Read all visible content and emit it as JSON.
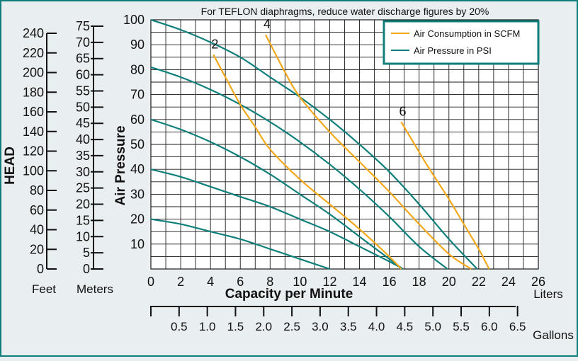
{
  "chart_data": {
    "type": "line",
    "title": "For TEFLON diaphragms, reduce water discharge figures by 20%",
    "xlabel": "Capacity per Minute",
    "x_unit_primary": "Liters",
    "x_unit_secondary": "Gallons",
    "ylabel": "Air Pressure",
    "y_outer_label": "HEAD",
    "xlim": [
      0,
      26
    ],
    "ylim": [
      0,
      100
    ],
    "x_ticks": [
      "0",
      "2",
      "4",
      "6",
      "8",
      "10",
      "12",
      "14",
      "16",
      "18",
      "20",
      "22",
      "24",
      "26"
    ],
    "y_ticks": [
      "10",
      "20",
      "30",
      "40",
      "50",
      "60",
      "70",
      "80",
      "90",
      "100"
    ],
    "gallon_ticks": [
      "0.5",
      "1.0",
      "1.5",
      "2.0",
      "2.5",
      "3.0",
      "3.5",
      "4.0",
      "4.5",
      "5.0",
      "5.5",
      "6.0",
      "6.5"
    ],
    "feet_axis": {
      "label": "Feet",
      "ticks": [
        "0",
        "20",
        "40",
        "60",
        "80",
        "100",
        "120",
        "140",
        "160",
        "180",
        "200",
        "220",
        "240"
      ]
    },
    "meters_axis": {
      "label": "Meters",
      "ticks": [
        "0",
        "5",
        "10",
        "15",
        "20",
        "25",
        "30",
        "35",
        "40",
        "45",
        "50",
        "55",
        "60",
        "65",
        "70",
        "75"
      ]
    },
    "legend": {
      "position": "top-right",
      "entries": [
        {
          "label": "Air Consumption in SCFM",
          "color": "#f3a81c"
        },
        {
          "label": "Air Pressure in PSI",
          "color": "#0f7f7b"
        }
      ]
    },
    "series": [
      {
        "name": "Air Pressure 100 PSI",
        "kind": "pressure",
        "color": "#0f7f7b",
        "points": [
          [
            0,
            100
          ],
          [
            2,
            96
          ],
          [
            4,
            91
          ],
          [
            6,
            85
          ],
          [
            8,
            77
          ],
          [
            10,
            69
          ],
          [
            12,
            60
          ],
          [
            14,
            50
          ],
          [
            16,
            39
          ],
          [
            18,
            26
          ],
          [
            20,
            12
          ],
          [
            21.9,
            0
          ]
        ]
      },
      {
        "name": "Air Pressure 80 PSI",
        "kind": "pressure",
        "color": "#0f7f7b",
        "points": [
          [
            0,
            81
          ],
          [
            2,
            77
          ],
          [
            4,
            72
          ],
          [
            6,
            66
          ],
          [
            8,
            59
          ],
          [
            10,
            51
          ],
          [
            12,
            42
          ],
          [
            14,
            32
          ],
          [
            16,
            21
          ],
          [
            18,
            9
          ],
          [
            19.9,
            0
          ]
        ]
      },
      {
        "name": "Air Pressure 60 PSI",
        "kind": "pressure",
        "color": "#0f7f7b",
        "points": [
          [
            0,
            60
          ],
          [
            2,
            56
          ],
          [
            4,
            51
          ],
          [
            6,
            45
          ],
          [
            8,
            38
          ],
          [
            10,
            30
          ],
          [
            12,
            22
          ],
          [
            14,
            13
          ],
          [
            16,
            4
          ],
          [
            16.9,
            0
          ]
        ]
      },
      {
        "name": "Air Pressure 40 PSI",
        "kind": "pressure",
        "color": "#0f7f7b",
        "points": [
          [
            0,
            40
          ],
          [
            2,
            37
          ],
          [
            4,
            33
          ],
          [
            6,
            29
          ],
          [
            8,
            25
          ],
          [
            10,
            20
          ],
          [
            12,
            15
          ],
          [
            14,
            9
          ],
          [
            16,
            3
          ],
          [
            16.9,
            0
          ]
        ]
      },
      {
        "name": "Air Pressure 20 PSI",
        "kind": "pressure",
        "color": "#0f7f7b",
        "points": [
          [
            0,
            20
          ],
          [
            2,
            18
          ],
          [
            4,
            15
          ],
          [
            6,
            12
          ],
          [
            8,
            8
          ],
          [
            10,
            4
          ],
          [
            12,
            0
          ]
        ]
      },
      {
        "name": "Air Consumption 2 SCFM",
        "kind": "consumption",
        "label": "2",
        "color": "#f3a81c",
        "points": [
          [
            4.2,
            86
          ],
          [
            5,
            77
          ],
          [
            6,
            66
          ],
          [
            7,
            57
          ],
          [
            8,
            48
          ],
          [
            10,
            36
          ],
          [
            12,
            26
          ],
          [
            14,
            16
          ],
          [
            16,
            5
          ],
          [
            16.8,
            0
          ]
        ]
      },
      {
        "name": "Air Consumption 4 SCFM",
        "kind": "consumption",
        "label": "4",
        "color": "#f3a81c",
        "points": [
          [
            7.7,
            94
          ],
          [
            9,
            79
          ],
          [
            10,
            69
          ],
          [
            12,
            55
          ],
          [
            14,
            43
          ],
          [
            16,
            31
          ],
          [
            18,
            18
          ],
          [
            20,
            6
          ],
          [
            21.5,
            0
          ]
        ]
      },
      {
        "name": "Air Consumption 6 SCFM",
        "kind": "consumption",
        "label": "6",
        "color": "#f3a81c",
        "points": [
          [
            16.8,
            59
          ],
          [
            17.5,
            52
          ],
          [
            18.5,
            42
          ],
          [
            20,
            28
          ],
          [
            21,
            18
          ],
          [
            22,
            8
          ],
          [
            22.7,
            0
          ]
        ]
      }
    ]
  }
}
